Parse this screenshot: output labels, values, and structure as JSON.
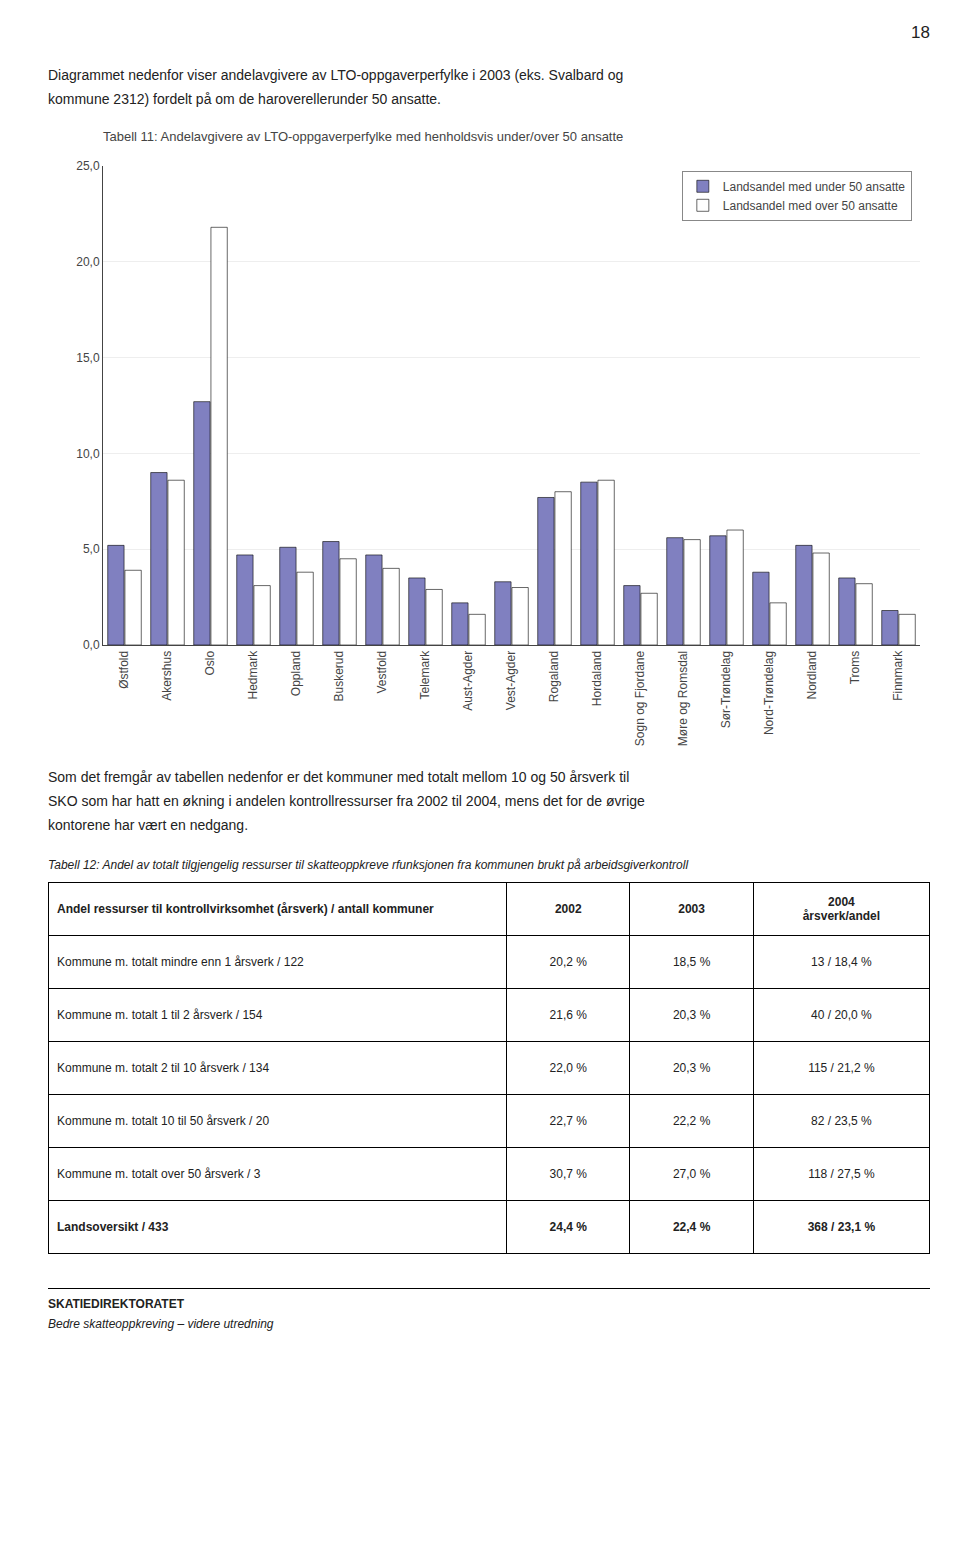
{
  "chart_data": {
    "type": "bar",
    "title": "Tabell 11: Andelavgivere av LTO-oppgaverperfylke med henholdsvis under/over 50 ansatte",
    "categories": [
      "Østfold",
      "Akershus",
      "Oslo",
      "Hedmark",
      "Oppland",
      "Buskerud",
      "Vestfold",
      "Telemark",
      "Aust-Agder",
      "Vest-Agder",
      "Rogaland",
      "Hordaland",
      "Sogn og Fjordane",
      "Møre og Romsdal",
      "Sør-Trøndelag",
      "Nord-Trøndelag",
      "Nordland",
      "Troms",
      "Finnmark"
    ],
    "series": [
      {
        "name": "Landsandel med under 50 ansatte",
        "color": "#8080c0",
        "values": [
          5.2,
          9.0,
          12.7,
          4.7,
          5.1,
          5.4,
          4.7,
          3.5,
          2.2,
          3.3,
          7.7,
          8.5,
          3.1,
          5.6,
          5.7,
          3.8,
          5.2,
          3.5,
          1.8
        ]
      },
      {
        "name": "Landsandel med over 50 ansatte",
        "color": "#ffffff",
        "values": [
          3.9,
          8.6,
          21.8,
          3.1,
          3.8,
          4.5,
          4.0,
          2.9,
          1.6,
          3.0,
          8.0,
          8.6,
          2.7,
          5.5,
          6.0,
          2.2,
          4.8,
          3.2,
          1.6
        ]
      }
    ],
    "ylim": [
      0,
      25
    ],
    "yticks": [
      {
        "value": 0,
        "label": "0,0"
      },
      {
        "value": 5,
        "label": "5,0"
      },
      {
        "value": 10,
        "label": "10,0"
      },
      {
        "value": 15,
        "label": "15,0"
      },
      {
        "value": 20,
        "label": "20,0"
      },
      {
        "value": 25,
        "label": "25,0"
      }
    ],
    "grid": true,
    "legend": "upper right"
  },
  "page_header": "18",
  "intro_text": [
    "Diagrammet nedenfor viser andelavgivere av LTO-oppgaverperfylke i 2003 (eks. Svalbard og",
    "kommune 2312) fordelt på om de haroverellerunder 50 ansatte."
  ],
  "body_text": [
    "Som det fremgår av tabellen nedenfor er det kommuner med totalt mellom 10 og 50 årsverk til",
    "SKO som har hatt en økning i andelen kontrollressurser fra 2002 til 2004, mens det for de øvrige",
    "kontorene har vært en nedgang."
  ],
  "table": {
    "title": "Tabell 12: Andel av totalt tilgjengelig ressurser til skatteoppkreve rfunksjonen fra kommunen brukt på arbeidsgiverkontroll",
    "header": [
      "Andel ressurser til kontrollvirksomhet (årsverk) / antall kommuner",
      "2002",
      "2003",
      "2004\nårsverk/andel"
    ],
    "rows": [
      [
        "Kommune m. totalt mindre enn 1 årsverk / 122",
        "20,2 %",
        "18,5 %",
        "13 / 18,4 %"
      ],
      [
        "Kommune m. totalt 1 til 2 årsverk / 154",
        "21,6 %",
        "20,3 %",
        "40 / 20,0 %"
      ],
      [
        "Kommune m. totalt 2 til 10 årsverk / 134",
        "22,0 %",
        "20,3 %",
        "115 / 21,2 %"
      ],
      [
        "Kommune m. totalt 10 til 50 årsverk / 20",
        "22,7 %",
        "22,2 %",
        "82 / 23,5 %"
      ],
      [
        "Kommune m. totalt over 50 årsverk / 3",
        "30,7 %",
        "27,0 %",
        "118 / 27,5 %"
      ],
      [
        "Landsoversikt / 433",
        "24,4 %",
        "22,4 %",
        "368 / 23,1 %"
      ]
    ]
  },
  "footer": [
    "SKATIEDIREKTORATET",
    "Bedre skatteoppkreving – videre utredning"
  ]
}
